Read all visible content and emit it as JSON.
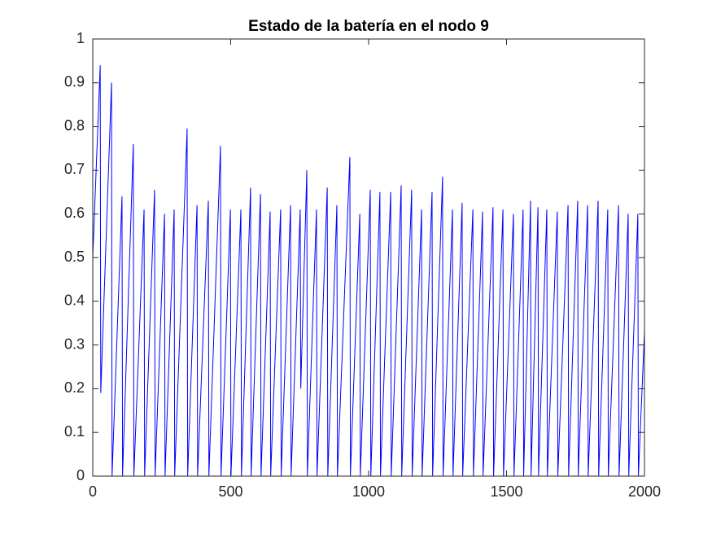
{
  "chart_data": {
    "type": "line",
    "title": "Estado de la batería en el nodo 9",
    "x": [
      0,
      27,
      29,
      68,
      70,
      106,
      108,
      147,
      149,
      186,
      188,
      224,
      226,
      260,
      262,
      295,
      297,
      342,
      344,
      378,
      380,
      419,
      421,
      463,
      465,
      499,
      501,
      537,
      539,
      572,
      574,
      608,
      610,
      643,
      645,
      681,
      683,
      717,
      719,
      752,
      754,
      776,
      778,
      811,
      813,
      850,
      852,
      885,
      887,
      932,
      934,
      968,
      970,
      1006,
      1008,
      1041,
      1043,
      1080,
      1082,
      1118,
      1120,
      1156,
      1158,
      1192,
      1194,
      1230,
      1232,
      1268,
      1270,
      1304,
      1306,
      1339,
      1341,
      1378,
      1380,
      1413,
      1415,
      1451,
      1453,
      1487,
      1489,
      1525,
      1527,
      1560,
      1562,
      1587,
      1589,
      1614,
      1616,
      1646,
      1648,
      1684,
      1686,
      1723,
      1725,
      1758,
      1760,
      1794,
      1796,
      1832,
      1834,
      1867,
      1869,
      1906,
      1908,
      1941,
      1943,
      1976,
      1978,
      2000
    ],
    "series": [
      {
        "color": "#0000ff",
        "values": [
          0.5,
          0.94,
          0.19,
          0.9,
          0,
          0.64,
          0,
          0.76,
          0,
          0.61,
          0,
          0.655,
          0,
          0.6,
          0,
          0.61,
          0,
          0.795,
          0,
          0.62,
          0,
          0.63,
          0,
          0.755,
          0,
          0.61,
          0,
          0.61,
          0,
          0.66,
          0,
          0.645,
          0,
          0.605,
          0,
          0.61,
          0,
          0.62,
          0,
          0.61,
          0.2,
          0.7,
          0,
          0.61,
          0,
          0.66,
          0,
          0.62,
          0,
          0.73,
          0,
          0.6,
          0,
          0.655,
          0,
          0.65,
          0,
          0.65,
          0,
          0.665,
          0,
          0.655,
          0,
          0.61,
          0,
          0.65,
          0,
          0.685,
          0,
          0.61,
          0,
          0.625,
          0,
          0.61,
          0,
          0.605,
          0,
          0.615,
          0,
          0.61,
          0,
          0.6,
          0,
          0.61,
          0,
          0.63,
          0,
          0.615,
          0,
          0.61,
          0,
          0.605,
          0,
          0.62,
          0,
          0.63,
          0,
          0.62,
          0,
          0.63,
          0,
          0.61,
          0,
          0.62,
          0,
          0.6,
          0,
          0.6,
          0,
          0.33
        ]
      }
    ],
    "xlim": [
      0,
      2000
    ],
    "xticks": [
      0,
      500,
      1000,
      1500,
      2000
    ],
    "ylim": [
      0,
      1
    ],
    "yticks": [
      0,
      0.1,
      0.2,
      0.3,
      0.4,
      0.5,
      0.6,
      0.7,
      0.8,
      0.9,
      1
    ]
  }
}
